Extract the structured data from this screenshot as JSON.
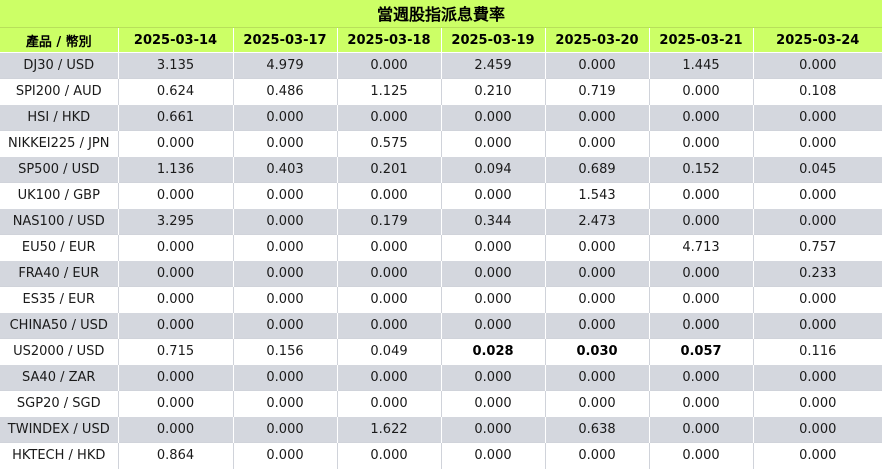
{
  "title": "當週股指派息費率",
  "header": {
    "product_label": "產品 / 幣別",
    "dates": [
      "2025-03-14",
      "2025-03-17",
      "2025-03-18",
      "2025-03-19",
      "2025-03-20",
      "2025-03-21",
      "2025-03-24"
    ]
  },
  "rows": [
    {
      "product": "DJ30 / USD",
      "values": [
        "3.135",
        "4.979",
        "0.000",
        "2.459",
        "0.000",
        "1.445",
        "0.000"
      ]
    },
    {
      "product": "SPI200 / AUD",
      "values": [
        "0.624",
        "0.486",
        "1.125",
        "0.210",
        "0.719",
        "0.000",
        "0.108"
      ]
    },
    {
      "product": "HSI / HKD",
      "values": [
        "0.661",
        "0.000",
        "0.000",
        "0.000",
        "0.000",
        "0.000",
        "0.000"
      ]
    },
    {
      "product": "NIKKEI225 / JPN",
      "values": [
        "0.000",
        "0.000",
        "0.575",
        "0.000",
        "0.000",
        "0.000",
        "0.000"
      ]
    },
    {
      "product": "SP500 / USD",
      "values": [
        "1.136",
        "0.403",
        "0.201",
        "0.094",
        "0.689",
        "0.152",
        "0.045"
      ]
    },
    {
      "product": "UK100 / GBP",
      "values": [
        "0.000",
        "0.000",
        "0.000",
        "0.000",
        "1.543",
        "0.000",
        "0.000"
      ]
    },
    {
      "product": "NAS100 / USD",
      "values": [
        "3.295",
        "0.000",
        "0.179",
        "0.344",
        "2.473",
        "0.000",
        "0.000"
      ]
    },
    {
      "product": "EU50 / EUR",
      "values": [
        "0.000",
        "0.000",
        "0.000",
        "0.000",
        "0.000",
        "4.713",
        "0.757"
      ]
    },
    {
      "product": "FRA40 / EUR",
      "values": [
        "0.000",
        "0.000",
        "0.000",
        "0.000",
        "0.000",
        "0.000",
        "0.233"
      ]
    },
    {
      "product": "ES35 / EUR",
      "values": [
        "0.000",
        "0.000",
        "0.000",
        "0.000",
        "0.000",
        "0.000",
        "0.000"
      ]
    },
    {
      "product": "CHINA50 / USD",
      "values": [
        "0.000",
        "0.000",
        "0.000",
        "0.000",
        "0.000",
        "0.000",
        "0.000"
      ]
    },
    {
      "product": "US2000 / USD",
      "values": [
        "0.715",
        "0.156",
        "0.049",
        "0.028",
        "0.030",
        "0.057",
        "0.116"
      ],
      "bold_indices": [
        3,
        4,
        5
      ]
    },
    {
      "product": "SA40 / ZAR",
      "values": [
        "0.000",
        "0.000",
        "0.000",
        "0.000",
        "0.000",
        "0.000",
        "0.000"
      ]
    },
    {
      "product": "SGP20 / SGD",
      "values": [
        "0.000",
        "0.000",
        "0.000",
        "0.000",
        "0.000",
        "0.000",
        "0.000"
      ]
    },
    {
      "product": "TWINDEX / USD",
      "values": [
        "0.000",
        "0.000",
        "1.622",
        "0.000",
        "0.638",
        "0.000",
        "0.000"
      ]
    },
    {
      "product": "HKTECH / HKD",
      "values": [
        "0.864",
        "0.000",
        "0.000",
        "0.000",
        "0.000",
        "0.000",
        "0.000"
      ]
    }
  ],
  "colors": {
    "header_bg": "#ccff66",
    "row_band_bg": "#d4d7de",
    "row_plain_bg": "#ffffff"
  }
}
